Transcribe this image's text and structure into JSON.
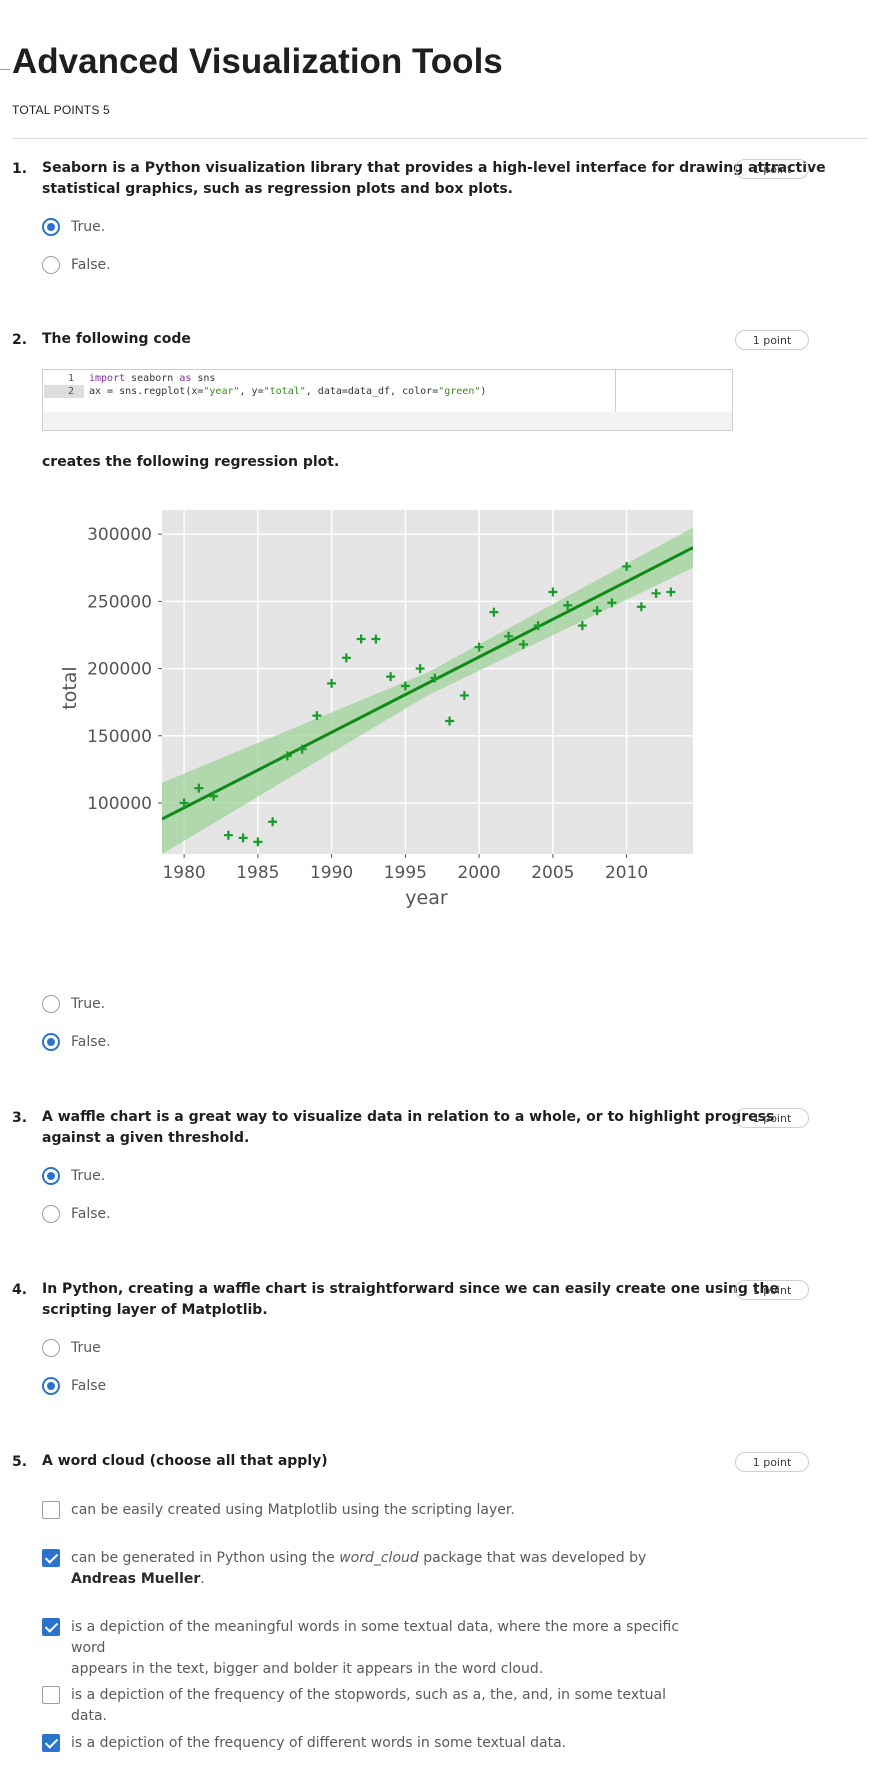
{
  "quiz": {
    "title": "Advanced Visualization Tools",
    "total_points": "TOTAL POINTS 5"
  },
  "questions": [
    {
      "number": "1.",
      "text_line1": "Seaborn is a Python visualization library that provides a high-level interface for drawing attractive",
      "text_line2": "statistical graphics, such as regression plots and box plots.",
      "points": "1 point",
      "options": [
        {
          "label": "True.",
          "selected": true
        },
        {
          "label": "False.",
          "selected": false
        }
      ]
    },
    {
      "number": "2.",
      "text": "The following code",
      "code": {
        "line_numbers": [
          "1",
          "2"
        ],
        "line1": {
          "kw": "import",
          "rest": " seaborn ",
          "kw2": "as",
          "rest2": " sns"
        },
        "line2": {
          "a": "ax = sns.regplot(x=",
          "s1": "\"year\"",
          "b": ", y=",
          "s2": "\"total\"",
          "c": ", data=data_df, color=",
          "s3": "\"green\"",
          "d": ")"
        }
      },
      "text_after": "creates the following regression plot.",
      "points": "1 point",
      "options": [
        {
          "label": "True.",
          "selected": false
        },
        {
          "label": "False.",
          "selected": true
        }
      ]
    },
    {
      "number": "3.",
      "text_line1": "A waffle chart is a great way to visualize data in relation to a whole, or to highlight progress",
      "text_line2": "against a given threshold.",
      "points": "1 point",
      "options": [
        {
          "label": "True.",
          "selected": true
        },
        {
          "label": "False.",
          "selected": false
        }
      ]
    },
    {
      "number": "4.",
      "text_line1": "In Python, creating a waffle chart is straightforward since we can easily create one using the",
      "text_line2": "scripting layer of Matplotlib.",
      "points": "1 point",
      "options": [
        {
          "label": "True",
          "selected": false
        },
        {
          "label": "False",
          "selected": true
        }
      ]
    },
    {
      "number": "5.",
      "text": "A word cloud (choose all that apply)",
      "points": "1 point",
      "options": [
        {
          "label": "can be easily created using Matplotlib using the scripting layer.",
          "checked": false
        },
        {
          "label_a": "can be generated in Python using the ",
          "label_em": "word_cloud",
          "label_b": " package that was developed by ",
          "label_strong": "Andreas Mueller",
          "label_c": ".",
          "checked": true
        },
        {
          "label_line1": "is a depiction of the meaningful words in some textual data, where the more a specific word",
          "label_line2": "appears in the text, bigger and bolder it appears in the word cloud.",
          "checked": true
        },
        {
          "label": "is a depiction of the frequency of the stopwords, such as a, the, and, in some textual data.",
          "checked": false
        },
        {
          "label": "is a depiction of the frequency of different words in some textual data.",
          "checked": true
        }
      ]
    }
  ],
  "chart_data": {
    "type": "scatter",
    "xlabel": "year",
    "ylabel": "total",
    "xlim": [
      1978.5,
      2014.5
    ],
    "ylim": [
      62000,
      318000
    ],
    "xticks": [
      1980,
      1985,
      1990,
      1995,
      2000,
      2005,
      2010
    ],
    "xtick_labels": [
      "1980",
      "1985",
      "1990",
      "1995",
      "2000",
      "2005",
      "2010"
    ],
    "yticks": [
      100000,
      150000,
      200000,
      250000,
      300000
    ],
    "ytick_labels": [
      "100000",
      "150000",
      "200000",
      "250000",
      "300000"
    ],
    "grid": true,
    "background": "#e5e5e5",
    "marker_color": "#1a9c2a",
    "line_color": "#0f8a16",
    "band_color": "#9fd39a",
    "regression_line": {
      "x": [
        1978.5,
        2014.5
      ],
      "y": [
        88000,
        290000
      ]
    },
    "confidence_band": {
      "x": [
        1978.5,
        1996.5,
        2014.5
      ],
      "upper": [
        115000,
        197000,
        305000
      ],
      "lower": [
        62000,
        180000,
        275000
      ]
    },
    "points": [
      {
        "x": 1980,
        "y": 100000
      },
      {
        "x": 1981,
        "y": 111000
      },
      {
        "x": 1982,
        "y": 105000
      },
      {
        "x": 1983,
        "y": 76000
      },
      {
        "x": 1984,
        "y": 74000
      },
      {
        "x": 1985,
        "y": 71000
      },
      {
        "x": 1986,
        "y": 86000
      },
      {
        "x": 1987,
        "y": 135000
      },
      {
        "x": 1988,
        "y": 140000
      },
      {
        "x": 1989,
        "y": 165000
      },
      {
        "x": 1990,
        "y": 189000
      },
      {
        "x": 1991,
        "y": 208000
      },
      {
        "x": 1992,
        "y": 222000
      },
      {
        "x": 1993,
        "y": 222000
      },
      {
        "x": 1994,
        "y": 194000
      },
      {
        "x": 1995,
        "y": 187000
      },
      {
        "x": 1996,
        "y": 200000
      },
      {
        "x": 1997,
        "y": 193000
      },
      {
        "x": 1998,
        "y": 161000
      },
      {
        "x": 1999,
        "y": 180000
      },
      {
        "x": 2000,
        "y": 216000
      },
      {
        "x": 2001,
        "y": 242000
      },
      {
        "x": 2002,
        "y": 224000
      },
      {
        "x": 2003,
        "y": 218000
      },
      {
        "x": 2004,
        "y": 232000
      },
      {
        "x": 2005,
        "y": 257000
      },
      {
        "x": 2006,
        "y": 247000
      },
      {
        "x": 2007,
        "y": 232000
      },
      {
        "x": 2008,
        "y": 243000
      },
      {
        "x": 2009,
        "y": 249000
      },
      {
        "x": 2010,
        "y": 276000
      },
      {
        "x": 2011,
        "y": 246000
      },
      {
        "x": 2012,
        "y": 256000
      },
      {
        "x": 2013,
        "y": 257000
      }
    ]
  }
}
